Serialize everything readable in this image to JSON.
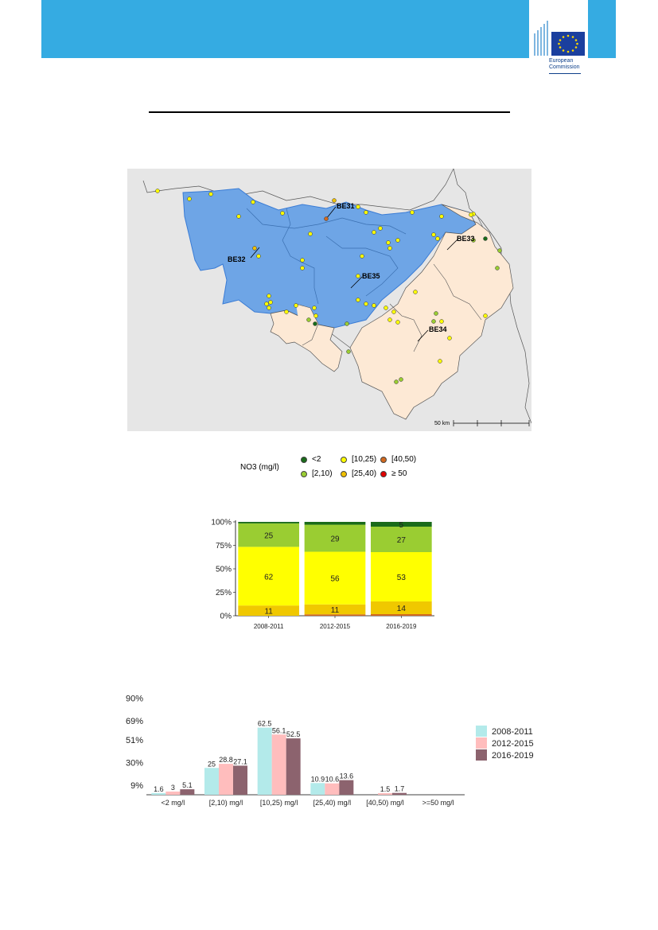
{
  "header": {
    "brand_line1": "European",
    "brand_line2": "Commission"
  },
  "map": {
    "regions": [
      "BE31",
      "BE32",
      "BE35",
      "BE33",
      "BE34"
    ],
    "scale_label": "50 km",
    "legend": {
      "title": "NO3 (mg/l)",
      "items": [
        {
          "label": "<2",
          "color": "#1a6b1a"
        },
        {
          "label": "[2,10)",
          "color": "#9acd32"
        },
        {
          "label": "[10,25)",
          "color": "#ffff00"
        },
        {
          "label": "[25,40)",
          "color": "#f0c000"
        },
        {
          "label": "[40,50)",
          "color": "#d2691e"
        },
        {
          "label": "≥ 50",
          "color": "#e00000"
        }
      ]
    }
  },
  "chart_data": [
    {
      "type": "bar",
      "stacked": true,
      "categories": [
        "2008-2011",
        "2012-2015",
        "2016-2019"
      ],
      "y_ticks": [
        "0%",
        "25%",
        "50%",
        "75%",
        "100%"
      ],
      "ylim": [
        0,
        100
      ],
      "series": [
        {
          "color": "#d2691e",
          "values": [
            0,
            1.5,
            1.7
          ]
        },
        {
          "color": "#f0c800",
          "values": [
            10.9,
            10.6,
            13.6
          ]
        },
        {
          "color": "#ffff00",
          "values": [
            62.5,
            56.1,
            52.5
          ]
        },
        {
          "color": "#9acd32",
          "values": [
            25,
            28.8,
            27.1
          ]
        },
        {
          "color": "#1a6b1a",
          "values": [
            1.6,
            3,
            5.1
          ]
        }
      ],
      "labels": [
        [
          "",
          "11",
          "62",
          "25",
          ""
        ],
        [
          "",
          "11",
          "56",
          "29",
          ""
        ],
        [
          "",
          "14",
          "53",
          "27",
          "5"
        ]
      ]
    },
    {
      "type": "bar",
      "categories": [
        "<2 mg/l",
        "[2,10) mg/l",
        "[10,25) mg/l",
        "[25,40) mg/l",
        "[40,50) mg/l",
        ">=50 mg/l"
      ],
      "y_ticks": [
        "9%",
        "30%",
        "51%",
        "69%",
        "90%"
      ],
      "ylim": [
        0,
        100
      ],
      "series": [
        {
          "name": "2008-2011",
          "color": "#b3eaea",
          "values": [
            1.6,
            25,
            62.5,
            10.9,
            0,
            0
          ],
          "labels": [
            "1.6",
            "25",
            "62.5",
            "10.9",
            "",
            ""
          ]
        },
        {
          "name": "2012-2015",
          "color": "#ffbdbd",
          "values": [
            3,
            28.8,
            56.1,
            10.6,
            1.5,
            0
          ],
          "labels": [
            "3",
            "28.8",
            "56.1",
            "10.6",
            "1.5",
            ""
          ]
        },
        {
          "name": "2016-2019",
          "color": "#8c636e",
          "values": [
            5.1,
            27.1,
            52.5,
            13.6,
            1.7,
            0
          ],
          "labels": [
            "5.1",
            "27.1",
            "52.5",
            "13.6",
            "1.7",
            ""
          ]
        }
      ]
    }
  ]
}
